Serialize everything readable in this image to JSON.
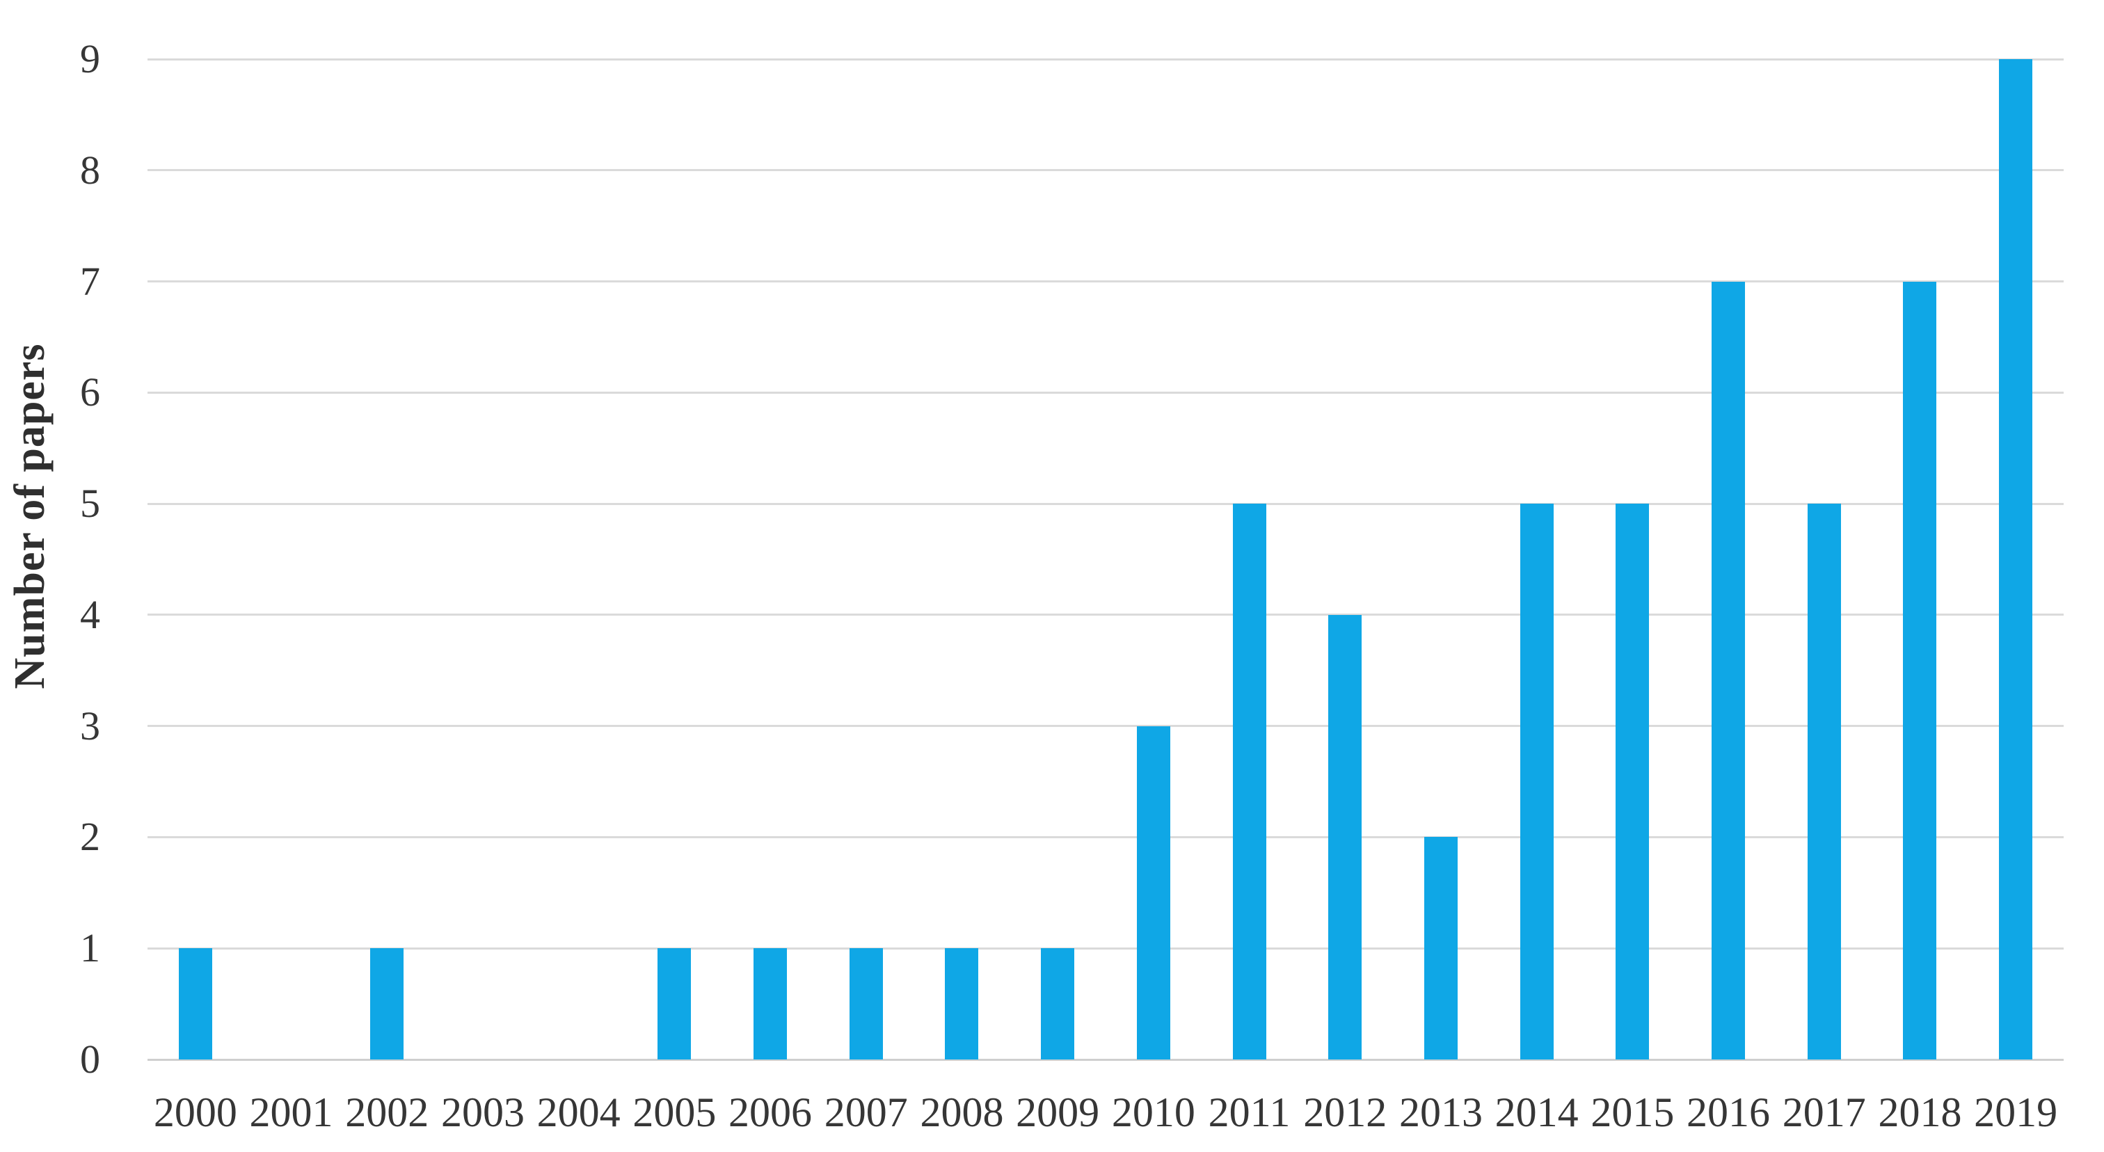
{
  "chart_data": {
    "type": "bar",
    "title": "",
    "xlabel": "",
    "ylabel": "Number of papers",
    "categories": [
      "2000",
      "2001",
      "2002",
      "2003",
      "2004",
      "2005",
      "2006",
      "2007",
      "2008",
      "2009",
      "2010",
      "2011",
      "2012",
      "2013",
      "2014",
      "2015",
      "2016",
      "2017",
      "2018",
      "2019"
    ],
    "values": [
      1,
      0,
      1,
      0,
      0,
      1,
      1,
      1,
      1,
      1,
      3,
      5,
      4,
      2,
      5,
      5,
      7,
      5,
      7,
      9
    ],
    "ylim": [
      0,
      9
    ],
    "ytick_step": 1,
    "yticks": [
      "0",
      "1",
      "2",
      "3",
      "4",
      "5",
      "6",
      "7",
      "8",
      "9"
    ],
    "grid": true,
    "legend": "none",
    "colors": {
      "bar": "#0FA7E6",
      "gridline": "#DADADA",
      "axis_line": "#CFCFCF",
      "tick_label": "#363636",
      "axis_title": "#2F2F2F"
    }
  }
}
